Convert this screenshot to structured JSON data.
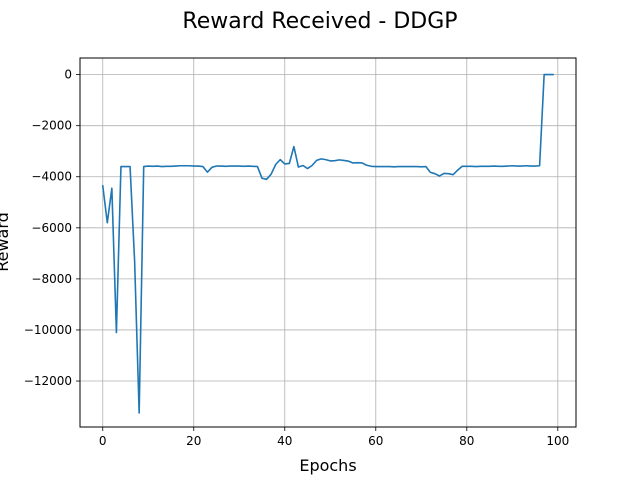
{
  "chart_data": {
    "type": "line",
    "title": "Reward Received - DDGP",
    "xlabel": "Epochs",
    "ylabel": "Reward",
    "xlim": [
      -5,
      104
    ],
    "ylim": [
      -13800,
      650
    ],
    "xticks": [
      0,
      20,
      40,
      60,
      80,
      100
    ],
    "yticks": [
      0,
      -2000,
      -4000,
      -6000,
      -8000,
      -10000,
      -12000
    ],
    "grid": true,
    "series": [
      {
        "color": "#1f77b4",
        "x": [
          0,
          1,
          2,
          3,
          4,
          5,
          6,
          7,
          8,
          9,
          10,
          11,
          12,
          13,
          14,
          15,
          16,
          17,
          18,
          19,
          20,
          21,
          22,
          23,
          24,
          25,
          26,
          27,
          28,
          29,
          30,
          31,
          32,
          33,
          34,
          35,
          36,
          37,
          38,
          39,
          40,
          41,
          42,
          43,
          44,
          45,
          46,
          47,
          48,
          49,
          50,
          51,
          52,
          53,
          54,
          55,
          56,
          57,
          58,
          59,
          60,
          61,
          62,
          63,
          64,
          65,
          66,
          67,
          68,
          69,
          70,
          71,
          72,
          73,
          74,
          75,
          76,
          77,
          78,
          79,
          80,
          81,
          82,
          83,
          84,
          85,
          86,
          87,
          88,
          89,
          90,
          91,
          92,
          93,
          94,
          95,
          96,
          97,
          98,
          99
        ],
        "y": [
          -4350,
          -5800,
          -4450,
          -10100,
          -3600,
          -3600,
          -3600,
          -7300,
          -13250,
          -3600,
          -3580,
          -3590,
          -3580,
          -3600,
          -3590,
          -3590,
          -3580,
          -3570,
          -3570,
          -3570,
          -3580,
          -3580,
          -3600,
          -3820,
          -3630,
          -3580,
          -3580,
          -3590,
          -3580,
          -3580,
          -3580,
          -3590,
          -3580,
          -3590,
          -3600,
          -4060,
          -4100,
          -3900,
          -3520,
          -3330,
          -3500,
          -3480,
          -2820,
          -3620,
          -3560,
          -3680,
          -3560,
          -3360,
          -3300,
          -3330,
          -3380,
          -3370,
          -3340,
          -3360,
          -3390,
          -3460,
          -3450,
          -3460,
          -3550,
          -3590,
          -3600,
          -3600,
          -3600,
          -3600,
          -3610,
          -3600,
          -3600,
          -3600,
          -3600,
          -3600,
          -3610,
          -3600,
          -3830,
          -3880,
          -3970,
          -3870,
          -3880,
          -3920,
          -3740,
          -3590,
          -3590,
          -3590,
          -3600,
          -3590,
          -3590,
          -3590,
          -3580,
          -3590,
          -3590,
          -3580,
          -3570,
          -3580,
          -3580,
          -3570,
          -3580,
          -3580,
          -3570,
          0,
          0,
          0
        ]
      }
    ]
  }
}
